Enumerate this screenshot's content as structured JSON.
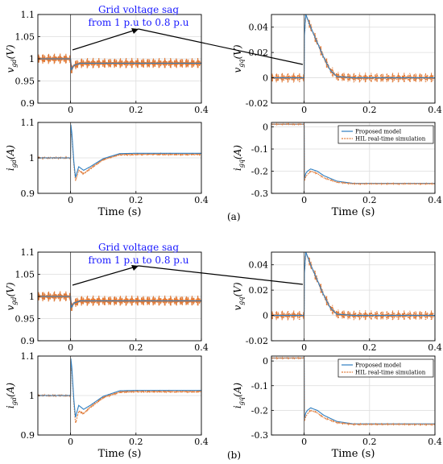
{
  "figure_labels": [
    "(a)",
    "(b)"
  ],
  "annotation": {
    "line1": "Grid voltage sag",
    "line2": "from 1 p.u to 0.8 p.u"
  },
  "colors": {
    "proposed": "#2f7fc1",
    "hil": "#e07b39",
    "hil_dark": "#b5522a",
    "axis": "#000000"
  },
  "chart_data": [
    {
      "id": "a-vgd",
      "type": "line",
      "group": "a",
      "ylabel": "v_{gd}(V)",
      "xlabel": "",
      "xlim": [
        -0.1,
        0.4
      ],
      "ylim": [
        0.9,
        1.1
      ],
      "xticks": [
        0,
        0.2,
        0.4
      ],
      "xtick_labels": [
        "0",
        "0.2",
        "0.4"
      ],
      "yticks": [
        0.9,
        0.95,
        1.0,
        1.05,
        1.1
      ],
      "ytick_labels": [
        "0.9",
        "0.95",
        "1",
        "1.05",
        "1.1"
      ],
      "grid": true,
      "series": [
        {
          "key": "hil",
          "x": [
            -0.1,
            0.0,
            0.0,
            0.003,
            0.01,
            0.03,
            0.06,
            0.1,
            0.2,
            0.3,
            0.4
          ],
          "y": [
            1.0,
            1.0,
            0.985,
            0.975,
            0.985,
            0.99,
            0.99,
            0.99,
            0.99,
            0.99,
            0.99
          ],
          "ripple": 0.012
        },
        {
          "key": "proposed",
          "x": [
            -0.1,
            0.0,
            0.0,
            0.003,
            0.01,
            0.03,
            0.06,
            0.1,
            0.2,
            0.3,
            0.4
          ],
          "y": [
            1.0,
            1.0,
            0.985,
            0.975,
            0.985,
            0.99,
            0.99,
            0.99,
            0.99,
            0.99,
            0.99
          ],
          "ripple": 0
        }
      ]
    },
    {
      "id": "a-vgq",
      "type": "line",
      "group": "a",
      "ylabel": "v_{gq}(V)",
      "xlabel": "",
      "xlim": [
        -0.1,
        0.4
      ],
      "ylim": [
        -0.02,
        0.05
      ],
      "xticks": [
        0,
        0.2,
        0.4
      ],
      "xtick_labels": [
        "0",
        "0.2",
        "0.4"
      ],
      "yticks": [
        -0.02,
        0,
        0.02,
        0.04
      ],
      "ytick_labels": [
        "-0.02",
        "0",
        "0.02",
        "0.04"
      ],
      "grid": true,
      "series": [
        {
          "key": "hil",
          "x": [
            -0.1,
            0.0,
            0.0,
            0.005,
            0.02,
            0.04,
            0.06,
            0.08,
            0.1,
            0.15,
            0.2,
            0.3,
            0.4
          ],
          "y": [
            0.0,
            0.0,
            0.03,
            0.05,
            0.04,
            0.028,
            0.016,
            0.006,
            0.001,
            0.0,
            0.0,
            0.0,
            0.0
          ],
          "ripple": 0.004
        },
        {
          "key": "proposed",
          "x": [
            -0.1,
            0.0,
            0.0,
            0.005,
            0.02,
            0.04,
            0.06,
            0.08,
            0.1,
            0.15,
            0.2,
            0.3,
            0.4
          ],
          "y": [
            0.0,
            0.0,
            0.03,
            0.05,
            0.04,
            0.028,
            0.016,
            0.006,
            0.001,
            0.0,
            0.0,
            0.0,
            0.0
          ],
          "ripple": 0
        }
      ]
    },
    {
      "id": "a-igd",
      "type": "line",
      "group": "a",
      "ylabel": "i_{gd}(A)",
      "xlabel": "Time (s)",
      "xlim": [
        -0.1,
        0.4
      ],
      "ylim": [
        0.9,
        1.1
      ],
      "xticks": [
        0,
        0.2,
        0.4
      ],
      "xtick_labels": [
        "0",
        "0.2",
        "0.4"
      ],
      "yticks": [
        0.9,
        1.0,
        1.1
      ],
      "ytick_labels": [
        "0.9",
        "1",
        "1.1"
      ],
      "grid": true,
      "series": [
        {
          "key": "hil",
          "x": [
            -0.1,
            0.0,
            0.0,
            0.004,
            0.01,
            0.015,
            0.025,
            0.04,
            0.06,
            0.1,
            0.15,
            0.2,
            0.3,
            0.4
          ],
          "y": [
            1.0,
            1.0,
            1.08,
            1.06,
            0.98,
            0.935,
            0.965,
            0.955,
            0.97,
            0.995,
            1.009,
            1.01,
            1.01,
            1.01
          ],
          "ripple": 0.003
        },
        {
          "key": "proposed",
          "x": [
            -0.1,
            0.0,
            0.0,
            0.004,
            0.01,
            0.015,
            0.025,
            0.04,
            0.06,
            0.1,
            0.15,
            0.2,
            0.3,
            0.4
          ],
          "y": [
            1.0,
            1.0,
            1.1,
            1.07,
            0.99,
            0.945,
            0.975,
            0.965,
            0.975,
            0.998,
            1.012,
            1.013,
            1.013,
            1.013
          ],
          "ripple": 0
        }
      ]
    },
    {
      "id": "a-igq",
      "type": "line",
      "group": "a",
      "ylabel": "i_{gq}(A)",
      "xlabel": "Time (s)",
      "xlim": [
        -0.1,
        0.4
      ],
      "ylim": [
        -0.3,
        0.02
      ],
      "xticks": [
        0,
        0.2,
        0.4
      ],
      "xtick_labels": [
        "0",
        "0.2",
        "0.4"
      ],
      "yticks": [
        -0.3,
        -0.2,
        -0.1,
        0
      ],
      "ytick_labels": [
        "-0.3",
        "-0.2",
        "-0.1",
        "0"
      ],
      "grid": true,
      "legend": {
        "position": "top-right",
        "entries": [
          "Proposed model",
          "HIL real-time simulation"
        ]
      },
      "series": [
        {
          "key": "proposed",
          "x": [
            -0.1,
            0.0,
            0.0,
            0.005,
            0.01,
            0.02,
            0.04,
            0.06,
            0.1,
            0.15,
            0.2,
            0.3,
            0.4
          ],
          "y": [
            0.012,
            0.012,
            -0.24,
            -0.21,
            -0.2,
            -0.19,
            -0.2,
            -0.22,
            -0.245,
            -0.255,
            -0.255,
            -0.255,
            -0.255
          ],
          "ripple": 0
        },
        {
          "key": "hil",
          "x": [
            -0.1,
            0.0,
            0.0,
            0.005,
            0.01,
            0.02,
            0.04,
            0.06,
            0.1,
            0.15,
            0.2,
            0.3,
            0.4
          ],
          "y": [
            0.012,
            0.012,
            -0.25,
            -0.225,
            -0.215,
            -0.2,
            -0.21,
            -0.23,
            -0.25,
            -0.257,
            -0.257,
            -0.257,
            -0.257
          ],
          "ripple": 0.002
        }
      ]
    },
    {
      "id": "b-vgd",
      "type": "line",
      "group": "b",
      "ylabel": "v_{gd}(V)",
      "xlabel": "",
      "xlim": [
        -0.1,
        0.4
      ],
      "ylim": [
        0.9,
        1.1
      ],
      "xticks": [
        0,
        0.2,
        0.4
      ],
      "xtick_labels": [
        "0",
        "0.2",
        "0.4"
      ],
      "yticks": [
        0.9,
        0.95,
        1.0,
        1.05,
        1.1
      ],
      "ytick_labels": [
        "0.9",
        "0.95",
        "1",
        "1.05",
        "1.1"
      ],
      "grid": true,
      "series": [
        {
          "key": "hil",
          "x": [
            -0.1,
            0.0,
            0.0,
            0.003,
            0.01,
            0.03,
            0.06,
            0.1,
            0.2,
            0.3,
            0.4
          ],
          "y": [
            1.0,
            1.0,
            0.985,
            0.975,
            0.985,
            0.99,
            0.99,
            0.99,
            0.99,
            0.99,
            0.99
          ],
          "ripple": 0.012
        },
        {
          "key": "proposed",
          "x": [
            -0.1,
            0.0,
            0.0,
            0.003,
            0.01,
            0.03,
            0.06,
            0.1,
            0.2,
            0.3,
            0.4
          ],
          "y": [
            1.0,
            1.0,
            0.985,
            0.975,
            0.985,
            0.99,
            0.99,
            0.99,
            0.99,
            0.99,
            0.99
          ],
          "ripple": 0
        }
      ]
    },
    {
      "id": "b-vgq",
      "type": "line",
      "group": "b",
      "ylabel": "v_{gq}(V)",
      "xlabel": "",
      "xlim": [
        -0.1,
        0.4
      ],
      "ylim": [
        -0.02,
        0.05
      ],
      "xticks": [
        0,
        0.2,
        0.4
      ],
      "xtick_labels": [
        "0",
        "0.2",
        "0.4"
      ],
      "yticks": [
        -0.02,
        0,
        0.02,
        0.04
      ],
      "ytick_labels": [
        "-0.02",
        "0",
        "0.02",
        "0.04"
      ],
      "grid": true,
      "series": [
        {
          "key": "hil",
          "x": [
            -0.1,
            0.0,
            0.0,
            0.005,
            0.02,
            0.04,
            0.06,
            0.08,
            0.1,
            0.15,
            0.2,
            0.3,
            0.4
          ],
          "y": [
            0.0,
            0.0,
            0.03,
            0.05,
            0.04,
            0.028,
            0.016,
            0.006,
            0.001,
            0.0,
            0.0,
            0.0,
            0.0
          ],
          "ripple": 0.004
        },
        {
          "key": "proposed",
          "x": [
            -0.1,
            0.0,
            0.0,
            0.005,
            0.02,
            0.04,
            0.06,
            0.08,
            0.1,
            0.15,
            0.2,
            0.3,
            0.4
          ],
          "y": [
            0.0,
            0.0,
            0.03,
            0.05,
            0.04,
            0.028,
            0.016,
            0.006,
            0.001,
            0.0,
            0.0,
            0.0,
            0.0
          ],
          "ripple": 0
        }
      ]
    },
    {
      "id": "b-igd",
      "type": "line",
      "group": "b",
      "ylabel": "i_{gd}(A)",
      "xlabel": "Time (s)",
      "xlim": [
        -0.1,
        0.4
      ],
      "ylim": [
        0.9,
        1.1
      ],
      "xticks": [
        0,
        0.2,
        0.4
      ],
      "xtick_labels": [
        "0",
        "0.2",
        "0.4"
      ],
      "yticks": [
        0.9,
        1.0,
        1.1
      ],
      "ytick_labels": [
        "0.9",
        "1",
        "1.1"
      ],
      "grid": true,
      "series": [
        {
          "key": "hil",
          "x": [
            -0.1,
            0.0,
            0.0,
            0.004,
            0.01,
            0.015,
            0.025,
            0.04,
            0.06,
            0.1,
            0.15,
            0.2,
            0.3,
            0.4
          ],
          "y": [
            1.0,
            1.0,
            1.08,
            1.06,
            0.98,
            0.93,
            0.96,
            0.955,
            0.97,
            0.995,
            1.009,
            1.01,
            1.01,
            1.01
          ],
          "ripple": 0.003
        },
        {
          "key": "proposed",
          "x": [
            -0.1,
            0.0,
            0.0,
            0.004,
            0.01,
            0.015,
            0.025,
            0.04,
            0.06,
            0.1,
            0.15,
            0.2,
            0.3,
            0.4
          ],
          "y": [
            1.0,
            1.0,
            1.1,
            1.07,
            0.99,
            0.945,
            0.975,
            0.965,
            0.975,
            0.998,
            1.012,
            1.013,
            1.013,
            1.013
          ],
          "ripple": 0
        }
      ]
    },
    {
      "id": "b-igq",
      "type": "line",
      "group": "b",
      "ylabel": "i_{gq}(A)",
      "xlabel": "Time (s)",
      "xlim": [
        -0.1,
        0.4
      ],
      "ylim": [
        -0.3,
        0.02
      ],
      "xticks": [
        0,
        0.2,
        0.4
      ],
      "xtick_labels": [
        "0",
        "0.2",
        "0.4"
      ],
      "yticks": [
        -0.3,
        -0.2,
        -0.1,
        0
      ],
      "ytick_labels": [
        "-0.3",
        "-0.2",
        "-0.1",
        "0"
      ],
      "grid": true,
      "legend": {
        "position": "top-right",
        "entries": [
          "Proposed model",
          "HIL real-time simulation"
        ]
      },
      "series": [
        {
          "key": "proposed",
          "x": [
            -0.1,
            0.0,
            0.0,
            0.005,
            0.01,
            0.02,
            0.04,
            0.06,
            0.1,
            0.15,
            0.2,
            0.3,
            0.4
          ],
          "y": [
            0.012,
            0.012,
            -0.24,
            -0.21,
            -0.2,
            -0.19,
            -0.2,
            -0.22,
            -0.245,
            -0.255,
            -0.255,
            -0.255,
            -0.255
          ],
          "ripple": 0
        },
        {
          "key": "hil",
          "x": [
            -0.1,
            0.0,
            0.0,
            0.005,
            0.01,
            0.02,
            0.04,
            0.06,
            0.1,
            0.15,
            0.2,
            0.3,
            0.4
          ],
          "y": [
            0.012,
            0.012,
            -0.25,
            -0.225,
            -0.215,
            -0.2,
            -0.21,
            -0.23,
            -0.25,
            -0.257,
            -0.257,
            -0.257,
            -0.257
          ],
          "ripple": 0.002
        }
      ]
    }
  ]
}
